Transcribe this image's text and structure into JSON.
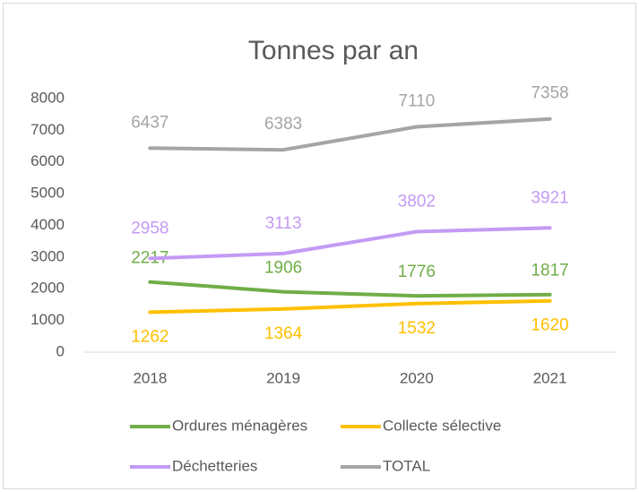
{
  "chart_data": {
    "type": "line",
    "title": "Tonnes par an",
    "categories": [
      "2018",
      "2019",
      "2020",
      "2021"
    ],
    "series": [
      {
        "name": "Ordures ménagères",
        "color": "#70ad47",
        "values": [
          2217,
          1906,
          1776,
          1817
        ]
      },
      {
        "name": "Collecte sélective",
        "color": "#ffc000",
        "values": [
          1262,
          1364,
          1532,
          1620
        ]
      },
      {
        "name": "Déchetteries",
        "color": "#c39bf4",
        "values": [
          2958,
          3113,
          3802,
          3921
        ]
      },
      {
        "name": "TOTAL",
        "color": "#a5a5a5",
        "values": [
          6437,
          6383,
          7110,
          7358
        ]
      }
    ],
    "ylim": [
      0,
      8000
    ],
    "yticks": [
      0,
      1000,
      2000,
      3000,
      4000,
      5000,
      6000,
      7000,
      8000
    ],
    "grid": false,
    "legend": "bottom"
  }
}
